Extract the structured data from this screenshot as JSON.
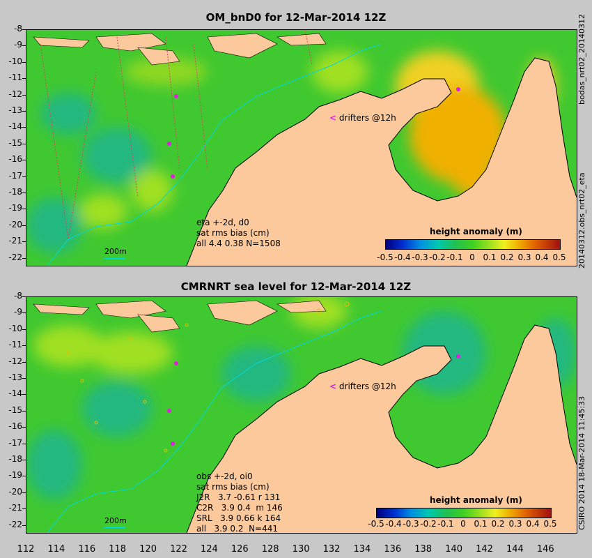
{
  "top": {
    "title": "OM_bnD0 for 12-Mar-2014 12Z",
    "annotation": [
      "eta +-2d, d0",
      "sat rms bias (cm)",
      "all 4.4 0.38 N=1508"
    ],
    "drifters": "drifters @12h",
    "scale_label": "200m",
    "right_labels": [
      "bodas_nrt02_20140312",
      "20140312.obs_nrt02_eta"
    ]
  },
  "bottom": {
    "title": "CMRNRT sea level  for 12-Mar-2014 12Z",
    "annotation": [
      "obs +-2d, oi0",
      "sat rms bias (cm)",
      "J2R   3.7 -0.61 r 131",
      "C2R   3.9 0.4  m 146",
      "SRL   3.9 0.66 k 164",
      "all   3.9 0.2  N=441"
    ],
    "drifters": "drifters @12h",
    "scale_label": "200m",
    "right_labels": [
      "CSIRO 2014  18-Mar-2014 11:45:33"
    ]
  },
  "colorbar": {
    "title": "height anomaly (m)",
    "ticks": [
      "-0.5",
      "-0.4",
      "-0.3",
      "-0.2",
      "-0.1",
      "0",
      "0.1",
      "0.2",
      "0.3",
      "0.4",
      "0.5"
    ]
  },
  "axes": {
    "lat_ticks": [
      "-8",
      "-9",
      "-10",
      "-11",
      "-12",
      "-13",
      "-14",
      "-15",
      "-16",
      "-17",
      "-18",
      "-19",
      "-20",
      "-21",
      "-22"
    ],
    "lon_ticks": [
      "112",
      "114",
      "116",
      "118",
      "120",
      "122",
      "124",
      "126",
      "128",
      "130",
      "132",
      "134",
      "136",
      "138",
      "140",
      "142",
      "144",
      "146"
    ]
  },
  "colors": {
    "land": "#fbc99c",
    "ocean_base": "#40c830",
    "contour_200m": "#00d8d8",
    "drifter": "#e020e0",
    "frame_bg": "#c8c8c8"
  }
}
